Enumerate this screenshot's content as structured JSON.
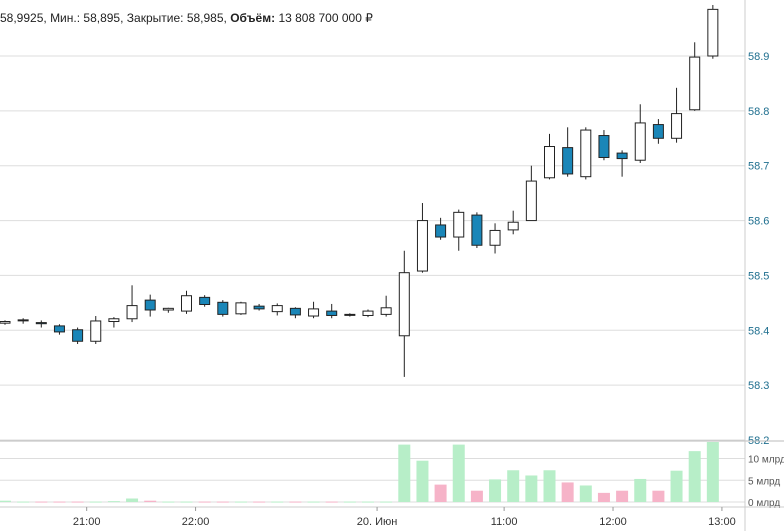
{
  "header": {
    "items": [
      {
        "label": "",
        "value": "58,9925,"
      },
      {
        "label": "Мин.:",
        "value": "58,895,"
      },
      {
        "label": "Закрытие:",
        "value": "58,985,"
      },
      {
        "label": "Объём:",
        "value": "13 808 700 000 ₽"
      }
    ]
  },
  "colors": {
    "up_fill": "#ffffff",
    "down_fill": "#1a86b8",
    "candle_stroke": "#222222",
    "volume_up": "#b7eec8",
    "volume_down": "#f6b3c8",
    "grid": "#dddddd",
    "price_axis_text": "#1f6f8f"
  },
  "chart_data": {
    "type": "candlestick",
    "price_axis": {
      "ticks": [
        58.2,
        58.3,
        58.4,
        58.5,
        58.6,
        58.7,
        58.8,
        58.9
      ],
      "tick_labels": [
        "58.2",
        "58.3",
        "58.4",
        "58.5",
        "58.6",
        "58.7",
        "58.8",
        "58.9"
      ],
      "range": [
        58.2,
        58.99
      ]
    },
    "volume_axis": {
      "ticks": [
        0,
        5,
        10
      ],
      "tick_labels": [
        "0 млрд",
        "5 млрд",
        "10 млрд"
      ],
      "range": [
        0,
        13.8
      ]
    },
    "time_axis": {
      "labels": [
        "21:00",
        "22:00",
        "20. Июн",
        "11:00",
        "12:00",
        "13:00"
      ],
      "label_index": [
        4.5,
        10.5,
        20.5,
        27.5,
        33.5,
        39.5
      ]
    },
    "candles": [
      {
        "o": 58.413,
        "h": 58.418,
        "l": 58.41,
        "c": 58.416,
        "v": 0.3
      },
      {
        "o": 58.418,
        "h": 58.422,
        "l": 58.412,
        "c": 58.419,
        "v": 0.1
      },
      {
        "o": 58.414,
        "h": 58.418,
        "l": 58.405,
        "c": 58.412,
        "v": 0.1
      },
      {
        "o": 58.408,
        "h": 58.411,
        "l": 58.392,
        "c": 58.397,
        "v": 0.1
      },
      {
        "o": 58.401,
        "h": 58.405,
        "l": 58.375,
        "c": 58.38,
        "v": 0.1
      },
      {
        "o": 58.38,
        "h": 58.426,
        "l": 58.375,
        "c": 58.417,
        "v": 0.1
      },
      {
        "o": 58.416,
        "h": 58.424,
        "l": 58.405,
        "c": 58.421,
        "v": 0.2
      },
      {
        "o": 58.421,
        "h": 58.482,
        "l": 58.415,
        "c": 58.445,
        "v": 0.8
      },
      {
        "o": 58.455,
        "h": 58.465,
        "l": 58.425,
        "c": 58.437,
        "v": 0.3
      },
      {
        "o": 58.437,
        "h": 58.441,
        "l": 58.432,
        "c": 58.44,
        "v": 0.1
      },
      {
        "o": 58.435,
        "h": 58.472,
        "l": 58.43,
        "c": 58.463,
        "v": 0.1
      },
      {
        "o": 58.46,
        "h": 58.464,
        "l": 58.443,
        "c": 58.447,
        "v": 0.1
      },
      {
        "o": 58.451,
        "h": 58.455,
        "l": 58.425,
        "c": 58.429,
        "v": 0.1
      },
      {
        "o": 58.43,
        "h": 58.452,
        "l": 58.428,
        "c": 58.45,
        "v": 0.1
      },
      {
        "o": 58.444,
        "h": 58.448,
        "l": 58.436,
        "c": 58.439,
        "v": 0.1
      },
      {
        "o": 58.434,
        "h": 58.449,
        "l": 58.427,
        "c": 58.445,
        "v": 0.1
      },
      {
        "o": 58.44,
        "h": 58.442,
        "l": 58.422,
        "c": 58.428,
        "v": 0.1
      },
      {
        "o": 58.426,
        "h": 58.452,
        "l": 58.422,
        "c": 58.439,
        "v": 0.1
      },
      {
        "o": 58.435,
        "h": 58.448,
        "l": 58.422,
        "c": 58.427,
        "v": 0.1
      },
      {
        "o": 58.428,
        "h": 58.431,
        "l": 58.425,
        "c": 58.429,
        "v": 0.1
      },
      {
        "o": 58.427,
        "h": 58.438,
        "l": 58.424,
        "c": 58.435,
        "v": 0.1
      },
      {
        "o": 58.429,
        "h": 58.463,
        "l": 58.425,
        "c": 58.441,
        "v": 0.1
      },
      {
        "o": 58.39,
        "h": 58.545,
        "l": 58.315,
        "c": 58.505,
        "v": 13.2
      },
      {
        "o": 58.508,
        "h": 58.632,
        "l": 58.505,
        "c": 58.6,
        "v": 9.5
      },
      {
        "o": 58.592,
        "h": 58.605,
        "l": 58.565,
        "c": 58.57,
        "v": 4.0
      },
      {
        "o": 58.57,
        "h": 58.62,
        "l": 58.545,
        "c": 58.615,
        "v": 13.2
      },
      {
        "o": 58.61,
        "h": 58.615,
        "l": 58.55,
        "c": 58.555,
        "v": 2.6
      },
      {
        "o": 58.555,
        "h": 58.595,
        "l": 58.54,
        "c": 58.582,
        "v": 5.2
      },
      {
        "o": 58.583,
        "h": 58.618,
        "l": 58.575,
        "c": 58.597,
        "v": 7.3
      },
      {
        "o": 58.6,
        "h": 58.7,
        "l": 58.6,
        "c": 58.672,
        "v": 6.1
      },
      {
        "o": 58.678,
        "h": 58.758,
        "l": 58.675,
        "c": 58.735,
        "v": 7.3
      },
      {
        "o": 58.733,
        "h": 58.77,
        "l": 58.68,
        "c": 58.685,
        "v": 4.5
      },
      {
        "o": 58.68,
        "h": 58.77,
        "l": 58.675,
        "c": 58.765,
        "v": 3.8
      },
      {
        "o": 58.755,
        "h": 58.765,
        "l": 58.71,
        "c": 58.715,
        "v": 2.1
      },
      {
        "o": 58.723,
        "h": 58.728,
        "l": 58.68,
        "c": 58.713,
        "v": 2.6
      },
      {
        "o": 58.71,
        "h": 58.812,
        "l": 58.705,
        "c": 58.778,
        "v": 5.3
      },
      {
        "o": 58.775,
        "h": 58.785,
        "l": 58.74,
        "c": 58.75,
        "v": 2.6
      },
      {
        "o": 58.75,
        "h": 58.842,
        "l": 58.742,
        "c": 58.795,
        "v": 7.2
      },
      {
        "o": 58.802,
        "h": 58.925,
        "l": 58.8,
        "c": 58.898,
        "v": 11.7
      },
      {
        "o": 58.9,
        "h": 58.993,
        "l": 58.895,
        "c": 58.985,
        "v": 13.8
      }
    ]
  }
}
